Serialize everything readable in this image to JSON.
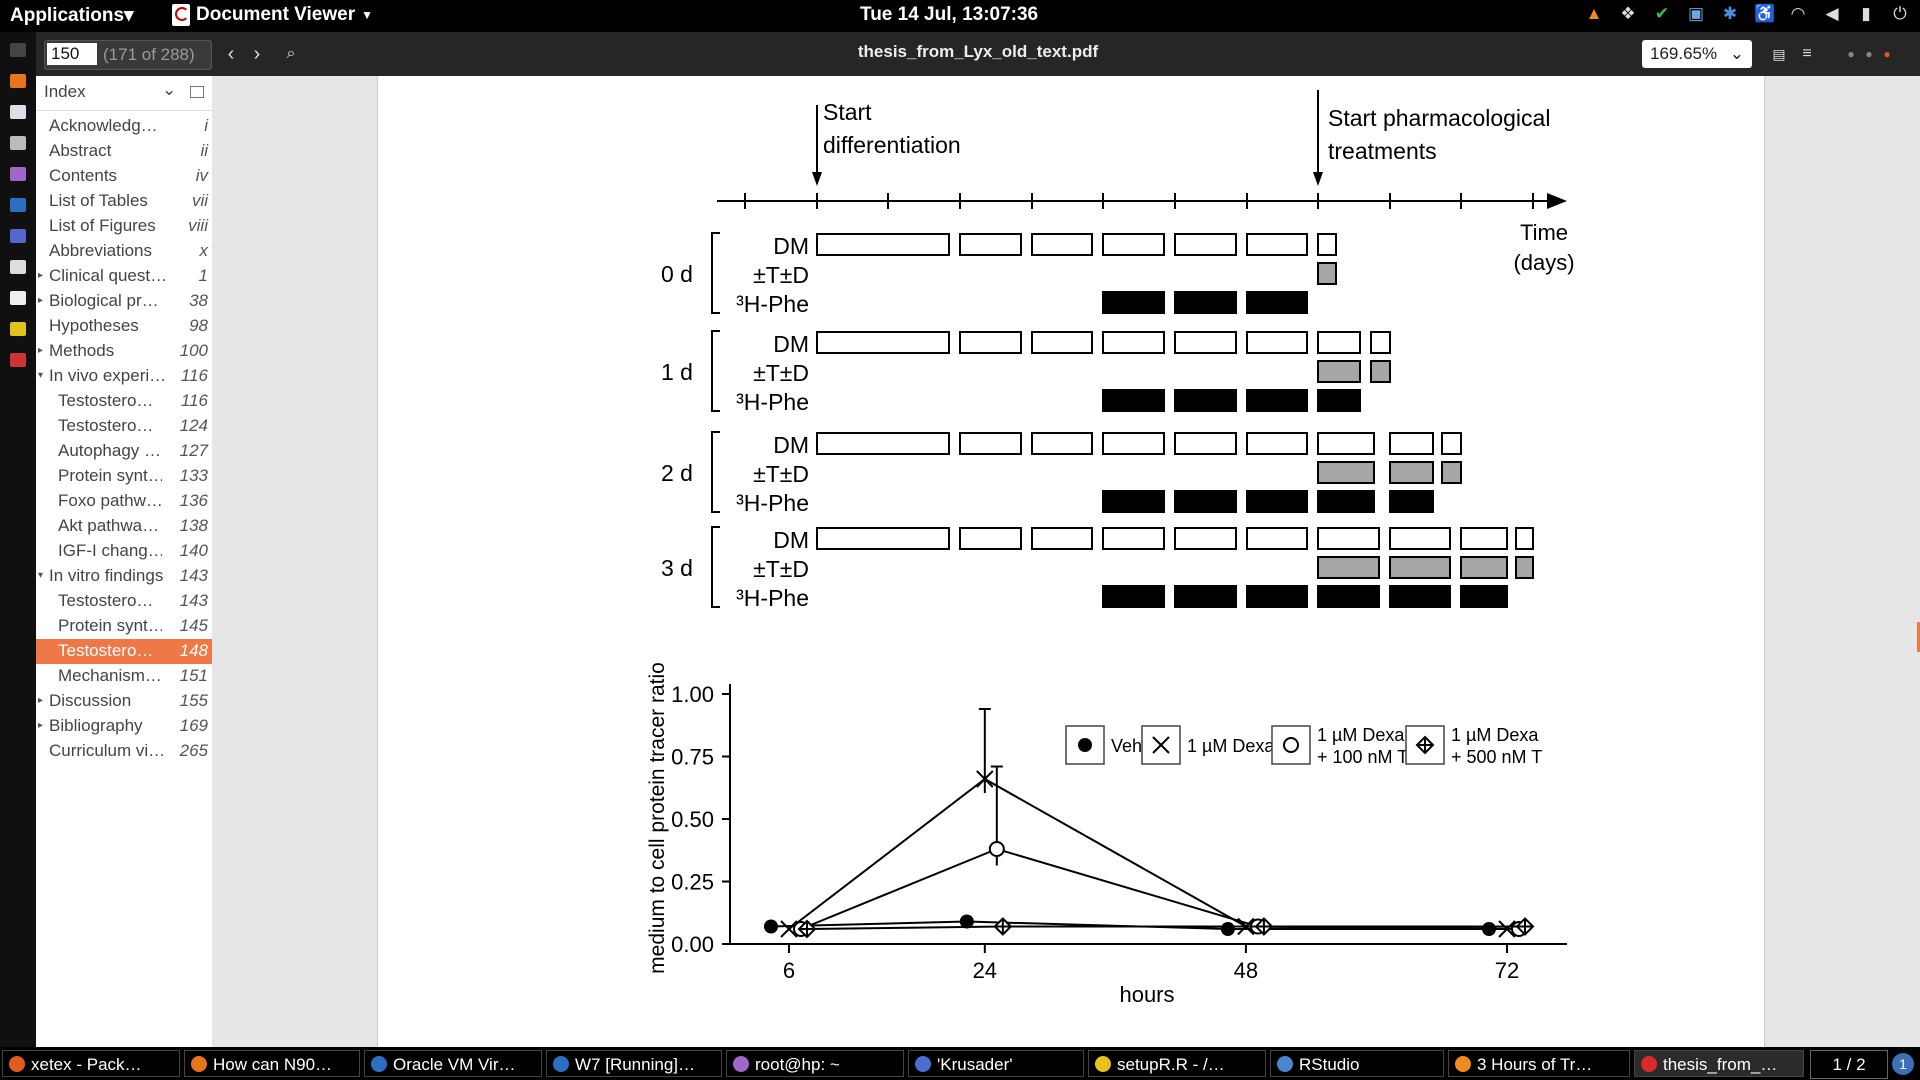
{
  "topbar": {
    "applications": "Applications",
    "app_menu": "Document Viewer",
    "clock": "Tue 14 Jul, 13:07:36"
  },
  "toolbar": {
    "page_value": "150",
    "page_of": "(171 of 288)",
    "doc_title": "thesis_from_Lyx_old_text.pdf",
    "zoom": "169.65%"
  },
  "sidebar": {
    "header": "Index",
    "items": [
      {
        "label": "Acknowledg…",
        "page": "i",
        "level": 0,
        "expander": ""
      },
      {
        "label": "Abstract",
        "page": "ii",
        "level": 0,
        "expander": ""
      },
      {
        "label": "Contents",
        "page": "iv",
        "level": 0,
        "expander": ""
      },
      {
        "label": "List of Tables",
        "page": "vii",
        "level": 0,
        "expander": ""
      },
      {
        "label": "List of Figures",
        "page": "viii",
        "level": 0,
        "expander": ""
      },
      {
        "label": "Abbreviations",
        "page": "x",
        "level": 0,
        "expander": ""
      },
      {
        "label": "Clinical quest…",
        "page": "1",
        "level": 0,
        "expander": "▸"
      },
      {
        "label": "Biological pr…",
        "page": "38",
        "level": 0,
        "expander": "▸"
      },
      {
        "label": "Hypotheses",
        "page": "98",
        "level": 0,
        "expander": ""
      },
      {
        "label": "Methods",
        "page": "100",
        "level": 0,
        "expander": "▸"
      },
      {
        "label": "In vivo experi…",
        "page": "116",
        "level": 0,
        "expander": "▾"
      },
      {
        "label": "Testostero…",
        "page": "116",
        "level": 1,
        "expander": ""
      },
      {
        "label": "Testostero…",
        "page": "124",
        "level": 1,
        "expander": ""
      },
      {
        "label": "Autophagy …",
        "page": "127",
        "level": 1,
        "expander": ""
      },
      {
        "label": "Protein synt…",
        "page": "133",
        "level": 1,
        "expander": ""
      },
      {
        "label": "Foxo pathw…",
        "page": "136",
        "level": 1,
        "expander": ""
      },
      {
        "label": "Akt pathwa…",
        "page": "138",
        "level": 1,
        "expander": ""
      },
      {
        "label": "IGF-I chang…",
        "page": "140",
        "level": 1,
        "expander": ""
      },
      {
        "label": "In vitro findings",
        "page": "143",
        "level": 0,
        "expander": "▾"
      },
      {
        "label": "Testostero…",
        "page": "143",
        "level": 1,
        "expander": ""
      },
      {
        "label": "Protein synt…",
        "page": "145",
        "level": 1,
        "expander": ""
      },
      {
        "label": "Testostero…",
        "page": "148",
        "level": 1,
        "expander": "",
        "selected": true
      },
      {
        "label": "Mechanism…",
        "page": "151",
        "level": 1,
        "expander": ""
      },
      {
        "label": "Discussion",
        "page": "155",
        "level": 0,
        "expander": "▸"
      },
      {
        "label": "Bibliography",
        "page": "169",
        "level": 0,
        "expander": "▸"
      },
      {
        "label": "Curriculum vi…",
        "page": "265",
        "level": 0,
        "expander": ""
      }
    ]
  },
  "timeline": {
    "start_diff": [
      "Start",
      "differentiation"
    ],
    "start_pharm": [
      "Start pharmacological",
      "treatments"
    ],
    "time_label": [
      "Time",
      "(days)"
    ],
    "row_labels": [
      "DM",
      "±T±D",
      "³H-Phe"
    ],
    "groups": [
      "0 d",
      "1 d",
      "2 d",
      "3 d"
    ]
  },
  "chart_data": {
    "type": "line",
    "ylabel": "medium to cell protein tracer ratio",
    "xlabel": "hours",
    "x_ticks": [
      "6",
      "24",
      "48",
      "72"
    ],
    "y_ticks": [
      "0.00",
      "0.25",
      "0.50",
      "0.75",
      "1.00"
    ],
    "ylim": [
      0,
      1.0
    ],
    "series": [
      {
        "name": "Veh",
        "marker": "filled-circle",
        "points": [
          [
            6,
            0.07
          ],
          [
            24,
            0.09
          ],
          [
            48,
            0.06
          ],
          [
            72,
            0.06
          ]
        ]
      },
      {
        "name": "1 µM Dexa",
        "marker": "x",
        "points": [
          [
            6,
            0.06
          ],
          [
            24,
            0.66
          ],
          [
            48,
            0.07
          ],
          [
            72,
            0.06
          ]
        ],
        "err_24": 0.28
      },
      {
        "name": "1 µM Dexa + 100 nM T",
        "marker": "open-circle",
        "points": [
          [
            6,
            0.06
          ],
          [
            24,
            0.38
          ],
          [
            48,
            0.07
          ],
          [
            72,
            0.06
          ]
        ],
        "err_24": 0.33
      },
      {
        "name": "1 µM Dexa + 500 nM T",
        "marker": "diamond-cross",
        "points": [
          [
            6,
            0.06
          ],
          [
            24,
            0.07
          ],
          [
            48,
            0.07
          ],
          [
            72,
            0.07
          ]
        ]
      }
    ],
    "legend": [
      {
        "lines": [
          "Veh"
        ]
      },
      {
        "lines": [
          "1 µM Dexa"
        ]
      },
      {
        "lines": [
          "1 µM Dexa",
          "+ 100 nM T"
        ]
      },
      {
        "lines": [
          "1 µM Dexa",
          "+ 500 nM T"
        ]
      }
    ],
    "legend_position": "top-right"
  },
  "taskbar": {
    "items": [
      {
        "label": "xetex - Pack…",
        "color": "#e35b1e"
      },
      {
        "label": "How can N90…",
        "color": "#e8741b"
      },
      {
        "label": "Oracle VM Vir…",
        "color": "#2b6fc2"
      },
      {
        "label": "W7 [Running]…",
        "color": "#2b6fc2"
      },
      {
        "label": "root@hp: ~",
        "color": "#a066c8"
      },
      {
        "label": "'Krusader'",
        "color": "#4a6fd0"
      },
      {
        "label": "setupR.R - /…",
        "color": "#e5c21a"
      },
      {
        "label": "RStudio",
        "color": "#4a86d0"
      },
      {
        "label": "3 Hours of Tr…",
        "color": "#f08a1b"
      },
      {
        "label": "thesis_from_…",
        "color": "#d92b2b"
      }
    ],
    "pager": "1 / 2",
    "notifications": "1"
  }
}
